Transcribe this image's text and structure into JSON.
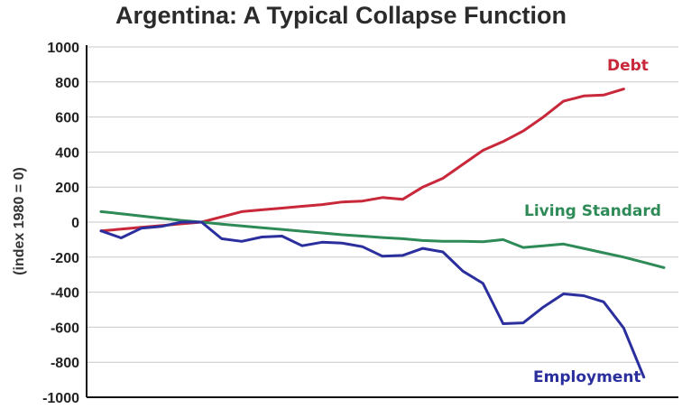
{
  "chart_data": {
    "type": "line",
    "title": "Argentina: A Typical Collapse Function",
    "ylabel": "(index 1980 = 0)",
    "xlabel": "",
    "ylim": [
      -1000,
      1000
    ],
    "yticks": [
      1000,
      800,
      600,
      400,
      200,
      0,
      -200,
      -400,
      -600,
      -800,
      -1000
    ],
    "grid": "horizontal",
    "x": [
      0,
      1,
      2,
      3,
      4,
      5,
      6,
      7,
      8,
      9,
      10,
      11,
      12,
      13,
      14,
      15,
      16,
      17,
      18,
      19,
      20,
      21,
      22,
      23,
      24,
      25,
      26,
      27,
      28
    ],
    "series": [
      {
        "name": "Debt",
        "color": "#c8283a",
        "values": [
          -50,
          -40,
          -30,
          -20,
          -10,
          0,
          30,
          60,
          70,
          80,
          90,
          100,
          115,
          120,
          140,
          130,
          200,
          250,
          330,
          410,
          460,
          520,
          600,
          690,
          720,
          725,
          760,
          null,
          null
        ]
      },
      {
        "name": "Living Standard",
        "color": "#2e8b57",
        "values": [
          60,
          48,
          35,
          22,
          10,
          0,
          -12,
          -22,
          -32,
          -42,
          -52,
          -62,
          -72,
          -80,
          -88,
          -95,
          -105,
          -110,
          -110,
          -112,
          -100,
          -145,
          -135,
          -125,
          -150,
          -175,
          -200,
          -230,
          -260
        ]
      },
      {
        "name": "Employment",
        "color": "#2b2f9e",
        "values": [
          -50,
          -90,
          -35,
          -25,
          0,
          0,
          -95,
          -110,
          -85,
          -80,
          -135,
          -115,
          -120,
          -140,
          -195,
          -190,
          -150,
          -170,
          -280,
          -350,
          -580,
          -575,
          -485,
          -410,
          -420,
          -455,
          -605,
          -885,
          null
        ]
      }
    ]
  }
}
